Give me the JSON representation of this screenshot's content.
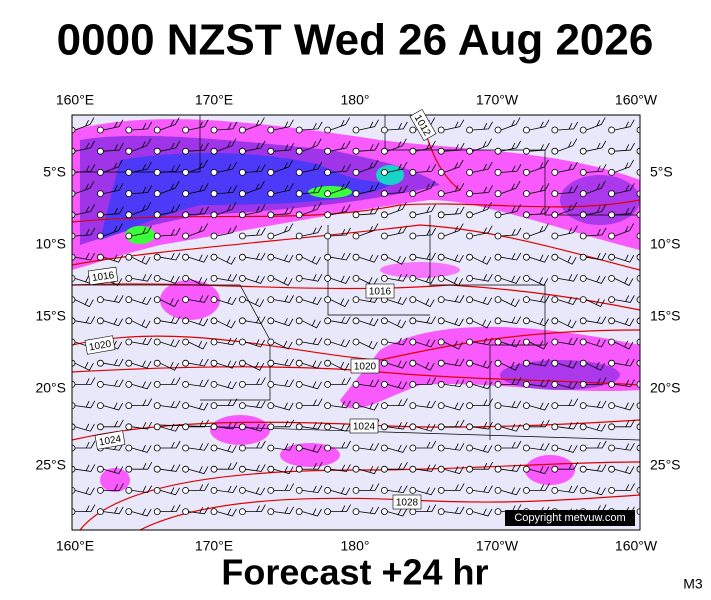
{
  "title": "0000 NZST Wed 26 Aug 2026",
  "lon_labels": [
    "160°E",
    "170°E",
    "180°",
    "170°W",
    "160°W"
  ],
  "lat_labels": [
    "5°S",
    "10°S",
    "15°S",
    "20°S",
    "25°S"
  ],
  "isobar_labels": [
    "1012",
    "1016",
    "1016",
    "1020",
    "1020",
    "1024",
    "1024",
    "1028"
  ],
  "copyright": "Copyright metvuw.com",
  "footer": "Forecast +24 hr",
  "model": "M3"
}
